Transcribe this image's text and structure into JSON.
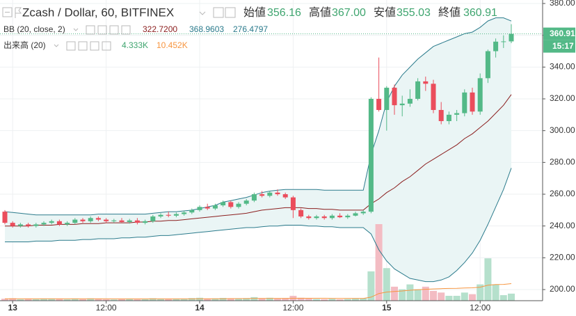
{
  "header": {
    "symbol": "Zcash / Dollar, 60, BITFINEX",
    "ohlc": [
      {
        "label": "始値",
        "value": "356.16"
      },
      {
        "label": "高値",
        "value": "367.00"
      },
      {
        "label": "安値",
        "value": "355.03"
      },
      {
        "label": "終値",
        "value": "360.91"
      }
    ]
  },
  "indicators": {
    "bb": {
      "name": "BB (20, close, 2)",
      "values": [
        "322.7200",
        "368.9603",
        "276.4797"
      ]
    },
    "volume": {
      "name": "出来高 (20)",
      "values": [
        "4.333K",
        "10.452K"
      ]
    }
  },
  "chart_data": {
    "type": "candlestick",
    "categories": [
      null,
      "13",
      null,
      null,
      null,
      null,
      null,
      null,
      null,
      null,
      null,
      null,
      null,
      "12:00",
      null,
      null,
      null,
      null,
      null,
      null,
      null,
      null,
      null,
      null,
      null,
      "14",
      null,
      null,
      null,
      null,
      null,
      null,
      null,
      null,
      null,
      null,
      null,
      "12:00",
      null,
      null,
      null,
      null,
      null,
      null,
      null,
      null,
      null,
      null,
      null,
      "15",
      null,
      null,
      null,
      null,
      null,
      null,
      null,
      null,
      null,
      null,
      null,
      "12:00",
      null,
      null,
      null,
      null
    ],
    "open": [
      249,
      242,
      240,
      241,
      240,
      241,
      242,
      243,
      241,
      242,
      244,
      243,
      245,
      244,
      243,
      243.5,
      242.5,
      243.5,
      242,
      243,
      246,
      247,
      246.5,
      247.5,
      248.5,
      250,
      252,
      251,
      253,
      255,
      252,
      254,
      256,
      260,
      259,
      261,
      260,
      258,
      250,
      246,
      245,
      246,
      245,
      246.5,
      245.5,
      246.5,
      248,
      249,
      320,
      313,
      327,
      316,
      317,
      320,
      331,
      329.5,
      313,
      306,
      310,
      311,
      324,
      312,
      333,
      350,
      356,
      356.16
    ],
    "high": [
      250,
      243,
      242,
      242,
      242,
      243,
      244,
      244,
      243,
      245,
      245,
      246,
      246,
      245,
      244.5,
      245,
      244.5,
      245,
      244,
      247,
      248,
      249,
      248.5,
      249.5,
      251,
      253,
      254,
      254,
      256,
      256,
      255,
      257,
      261,
      262,
      262,
      263,
      261,
      259,
      251,
      247,
      247,
      247,
      247.5,
      248,
      247.5,
      249,
      250,
      321,
      346,
      328,
      329,
      322,
      326,
      333,
      334,
      332,
      318,
      312,
      313,
      326,
      327,
      336,
      351,
      358,
      360,
      367
    ],
    "low": [
      241,
      239,
      239,
      239,
      239,
      240,
      241,
      240,
      240,
      241,
      242,
      242,
      243,
      242,
      242,
      242,
      241.5,
      241,
      241,
      242,
      245,
      245.5,
      245.5,
      246.5,
      247.5,
      249,
      250,
      250,
      252,
      251,
      251,
      253,
      255,
      258,
      258,
      259,
      257,
      245,
      245,
      244,
      244,
      244,
      244,
      245,
      244.5,
      246,
      247,
      248,
      312,
      300,
      310,
      309,
      315,
      319,
      325,
      311,
      304,
      304,
      306,
      309,
      310,
      310,
      330,
      346,
      352,
      355.03
    ],
    "close": [
      242,
      240,
      241,
      240,
      241,
      242,
      243,
      241,
      242,
      244,
      243,
      245,
      244,
      243,
      243.5,
      242.5,
      243.5,
      242,
      243,
      246,
      247,
      246.5,
      247.5,
      248.5,
      250,
      252,
      251,
      253,
      255,
      252,
      254,
      256,
      260,
      259,
      261,
      260,
      258,
      250,
      246,
      245,
      246,
      245,
      246.5,
      245.5,
      246.5,
      248,
      249,
      320,
      313,
      327,
      316,
      317,
      320,
      331,
      329.5,
      313,
      306,
      310,
      311,
      324,
      312,
      333,
      350,
      356,
      356.16,
      360.91
    ],
    "up_color": "#53b987",
    "down_color": "#eb4d5c",
    "ylim": [
      193,
      382.2
    ],
    "yticks": [
      {
        "value": 200,
        "label": "200.00"
      },
      {
        "value": 220,
        "label": "220.00"
      },
      {
        "value": 240,
        "label": "240.00"
      },
      {
        "value": 260,
        "label": "260.00"
      },
      {
        "value": 280,
        "label": "280.00"
      },
      {
        "value": 300,
        "label": "300.00"
      },
      {
        "value": 320,
        "label": "320.00"
      },
      {
        "value": 340,
        "label": "340.00"
      },
      {
        "value": 360,
        "label": "360.00"
      },
      {
        "value": 380,
        "label": "380.00"
      }
    ],
    "grid": true,
    "bb": {
      "upper_color": "#2b7b8c",
      "middle_color": "#8b1e1e",
      "fill": "#eaf5f5",
      "upper": [
        249,
        248.5,
        248,
        247.5,
        247,
        247,
        247,
        247,
        247,
        247,
        247,
        247,
        247.5,
        247.5,
        247.5,
        247.5,
        247.5,
        247.5,
        247.5,
        248,
        248.5,
        249,
        249,
        249.5,
        250,
        251,
        252,
        253,
        255,
        256,
        257,
        258,
        259.5,
        261,
        262,
        262.5,
        263,
        263,
        263,
        263,
        263,
        262.5,
        262.5,
        262.5,
        262.5,
        262.5,
        262.5,
        285,
        300,
        318,
        328,
        335,
        340,
        345,
        349,
        353,
        355,
        357,
        359,
        361,
        362,
        365,
        369,
        371,
        371,
        368.9603
      ],
      "middle": [
        240,
        240,
        240,
        240,
        240.5,
        240.5,
        240.5,
        241,
        241,
        241,
        241.5,
        241.5,
        241.5,
        242,
        242,
        242,
        242,
        242.5,
        242.5,
        243,
        243,
        243.5,
        243.5,
        244,
        244.5,
        245,
        245.5,
        246,
        246.5,
        247,
        247.5,
        248,
        249,
        250,
        250.5,
        251,
        251.5,
        251.5,
        251.5,
        251,
        251,
        250.5,
        250.5,
        250,
        250,
        250,
        250,
        254,
        257,
        261,
        264,
        268,
        271,
        275,
        279,
        282,
        285,
        288,
        291,
        295,
        298,
        302,
        306,
        311,
        316,
        322.72
      ],
      "lower": [
        230,
        230,
        230,
        230,
        230.5,
        230.5,
        230.5,
        231,
        231,
        231,
        231.5,
        231.5,
        232,
        232,
        232,
        232.5,
        232.5,
        233,
        233,
        233.5,
        234,
        234,
        234.5,
        235,
        235.5,
        236,
        236.5,
        237,
        237.5,
        238,
        238.5,
        239,
        239,
        239.5,
        240,
        240,
        240.5,
        240.5,
        240.5,
        240,
        240,
        239.5,
        239.5,
        239,
        239,
        239,
        239,
        235,
        225,
        218,
        213,
        210,
        207,
        206,
        205,
        205,
        206,
        208,
        212,
        217,
        223,
        231,
        241,
        252,
        263,
        276.4797
      ]
    },
    "volume": {
      "ma_color": "#f7953f",
      "up_color": "#b5e0cc",
      "down_color": "#f3bcc3",
      "values": [
        1.2,
        1.5,
        0.8,
        1.0,
        0.9,
        1.1,
        1.3,
        1.0,
        0.8,
        1.2,
        0.9,
        1.4,
        1.0,
        0.8,
        0.7,
        0.9,
        1.0,
        0.8,
        0.9,
        1.5,
        1.2,
        1.0,
        1.1,
        1.3,
        1.6,
        1.8,
        1.2,
        1.4,
        1.7,
        1.5,
        1.3,
        1.6,
        2.2,
        1.5,
        1.8,
        1.4,
        1.6,
        3.0,
        1.8,
        1.2,
        1.0,
        0.9,
        1.1,
        0.8,
        1.0,
        1.3,
        1.5,
        18,
        47,
        20,
        8.6,
        7,
        10,
        7,
        8.6,
        6,
        5,
        3,
        3,
        5,
        4,
        10,
        26,
        10,
        3.4,
        4.333
      ],
      "ma": [
        1.2,
        1.2,
        1.2,
        1.2,
        1.2,
        1.2,
        1.2,
        1.2,
        1.2,
        1.2,
        1.2,
        1.2,
        1.2,
        1.2,
        1.1,
        1.1,
        1.1,
        1.1,
        1.1,
        1.1,
        1.1,
        1.1,
        1.1,
        1.1,
        1.1,
        1.2,
        1.2,
        1.2,
        1.2,
        1.3,
        1.3,
        1.3,
        1.4,
        1.4,
        1.4,
        1.4,
        1.4,
        1.5,
        1.5,
        1.5,
        1.5,
        1.5,
        1.4,
        1.4,
        1.4,
        1.4,
        1.4,
        2.2,
        4.4,
        5.3,
        5.7,
        6.0,
        6.4,
        6.7,
        7.0,
        7.2,
        7.4,
        7.5,
        7.6,
        7.8,
        7.9,
        8.3,
        9.5,
        9.9,
        10.0,
        10.452
      ]
    },
    "last_price": {
      "label": "360.91",
      "countdown": "15:17"
    }
  }
}
